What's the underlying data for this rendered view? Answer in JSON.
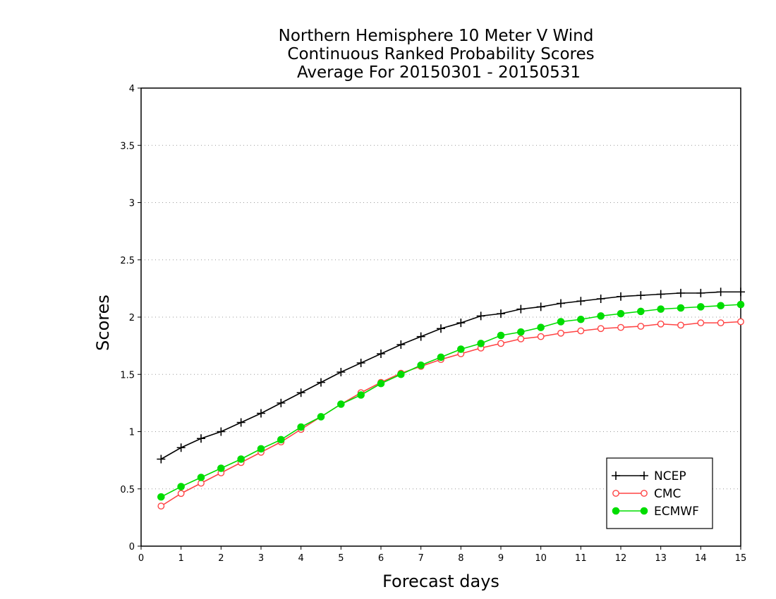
{
  "chart_data": {
    "type": "line",
    "title_lines": [
      "Northern Hemisphere 10 Meter V Wind",
      "Continuous Ranked Probability Scores",
      "Average For 20150301 - 20150531"
    ],
    "xlabel": "Forecast days",
    "ylabel": "Scores",
    "xlim": [
      0,
      15
    ],
    "ylim": [
      0,
      4
    ],
    "x_ticks": [
      "0",
      "1",
      "2",
      "3",
      "4",
      "5",
      "6",
      "7",
      "8",
      "9",
      "10",
      "11",
      "12",
      "13",
      "14",
      "15"
    ],
    "y_ticks": [
      "0",
      "0.5",
      "1",
      "1.5",
      "2",
      "2.5",
      "3",
      "3.5",
      "4"
    ],
    "grid": "horizontal-dotted",
    "legend_position": "bottom-right",
    "x": [
      0.5,
      1,
      1.5,
      2,
      2.5,
      3,
      3.5,
      4,
      4.5,
      5,
      5.5,
      6,
      6.5,
      7,
      7.5,
      8,
      8.5,
      9,
      9.5,
      10,
      10.5,
      11,
      11.5,
      12,
      12.5,
      13,
      13.5,
      14,
      14.5,
      15
    ],
    "series": [
      {
        "name": "NCEP",
        "color": "#000000",
        "marker": "plus",
        "values": [
          0.76,
          0.86,
          0.94,
          1.0,
          1.08,
          1.16,
          1.25,
          1.34,
          1.43,
          1.52,
          1.6,
          1.68,
          1.76,
          1.83,
          1.9,
          1.95,
          2.01,
          2.03,
          2.07,
          2.09,
          2.12,
          2.14,
          2.16,
          2.18,
          2.19,
          2.2,
          2.21,
          2.21,
          2.22,
          2.22
        ]
      },
      {
        "name": "CMC",
        "color": "#ff4444",
        "marker": "open-circle",
        "values": [
          0.35,
          0.46,
          0.55,
          0.64,
          0.73,
          0.82,
          0.91,
          1.02,
          1.13,
          1.24,
          1.34,
          1.43,
          1.51,
          1.57,
          1.63,
          1.68,
          1.73,
          1.77,
          1.81,
          1.83,
          1.86,
          1.88,
          1.9,
          1.91,
          1.92,
          1.94,
          1.93,
          1.95,
          1.95,
          1.96
        ]
      },
      {
        "name": "ECMWF",
        "color": "#00dd00",
        "marker": "filled-circle",
        "values": [
          0.43,
          0.52,
          0.6,
          0.68,
          0.76,
          0.85,
          0.93,
          1.04,
          1.13,
          1.24,
          1.32,
          1.42,
          1.5,
          1.58,
          1.65,
          1.72,
          1.77,
          1.84,
          1.87,
          1.91,
          1.96,
          1.98,
          2.01,
          2.03,
          2.05,
          2.07,
          2.08,
          2.09,
          2.1,
          2.11
        ]
      }
    ]
  }
}
